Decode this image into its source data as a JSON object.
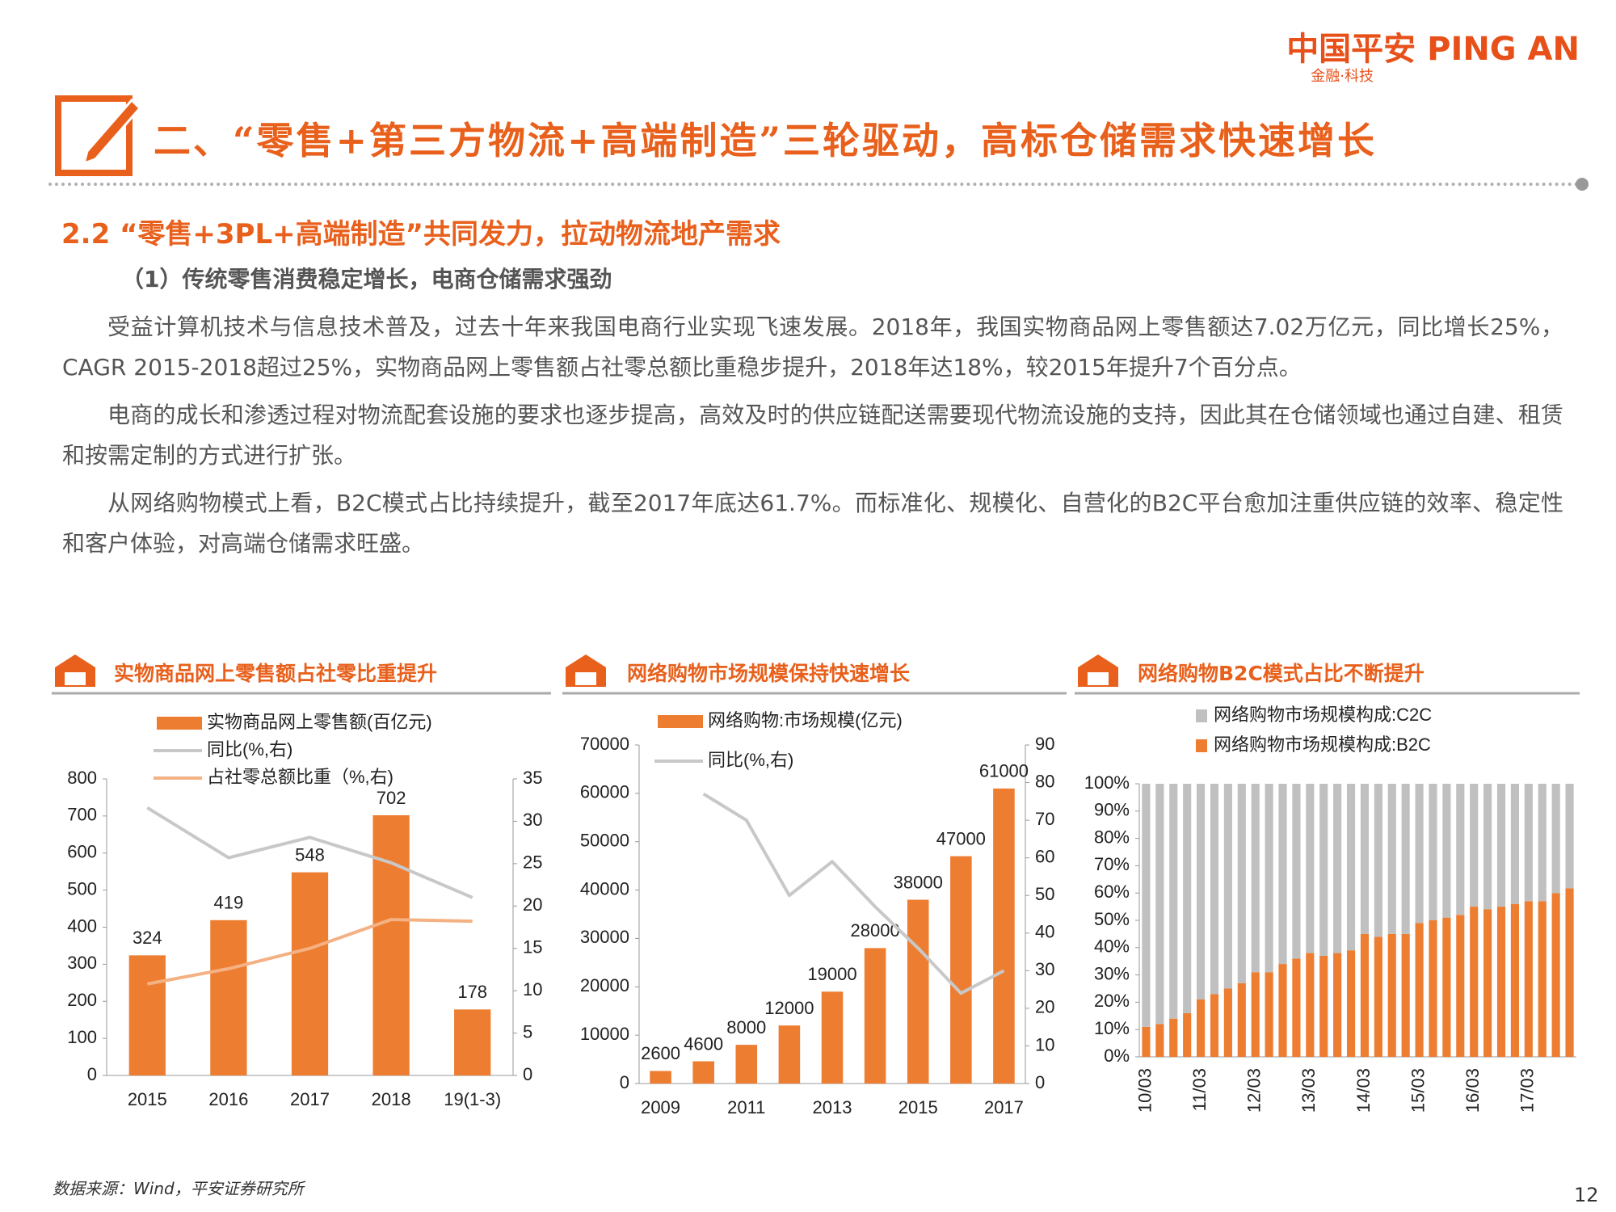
{
  "header": {
    "logo_cn": "中国平安",
    "logo_en": "PING AN",
    "logo_tagline": "金融·科技",
    "title": "二、“零售+第三方物流+高端制造”三轮驱动，高标仓储需求快速增长"
  },
  "section": {
    "heading": "2.2 “零售+3PL+高端制造”共同发力，拉动物流地产需求",
    "subheading": "（1）传统零售消费稳定增长，电商仓储需求强劲",
    "paragraphs": [
      "受益计算机技术与信息技术普及，过去十年来我国电商行业实现飞速发展。2018年，我国实物商品网上零售额达7.02万亿元，同比增长25%，CAGR 2015-2018超过25%，实物商品网上零售额占社零总额比重稳步提升，2018年达18%，较2015年提升7个百分点。",
      "电商的成长和渗透过程对物流配套设施的要求也逐步提高，高效及时的供应链配送需要现代物流设施的支持，因此其在仓储领域也通过自建、租赁和按需定制的方式进行扩张。",
      "从网络购物模式上看，B2C模式占比持续提升，截至2017年底达61.7%。而标准化、规模化、自营化的B2C平台愈加注重供应链的效率、稳定性和客户体验，对高端仓储需求旺盛。"
    ]
  },
  "chart_data": [
    {
      "type": "bar",
      "title": "实物商品网上零售额占社零比重提升",
      "categories": [
        "2015",
        "2016",
        "2017",
        "2018",
        "19(1-3)"
      ],
      "data_labels": true,
      "series": [
        {
          "name": "实物商品网上零售额(百亿元)",
          "type": "bar",
          "color": "#ED7D31",
          "values": [
            324,
            419,
            548,
            702,
            178
          ]
        },
        {
          "name": "同比(%,右)",
          "type": "line",
          "axis": "y2",
          "color": "#c8c8c8",
          "values": [
            31.6,
            25.7,
            28.1,
            25.1,
            21
          ]
        },
        {
          "name": "占社零总额比重（%,右)",
          "type": "line",
          "axis": "y2",
          "color": "#f4b183",
          "values": [
            10.8,
            12.6,
            15,
            18.4,
            18.2
          ]
        }
      ],
      "ylim": [
        0,
        800
      ],
      "yticks": [
        0,
        100,
        200,
        300,
        400,
        500,
        600,
        700,
        800
      ],
      "y2lim": [
        0,
        35
      ],
      "y2ticks": [
        0,
        5,
        10,
        15,
        20,
        25,
        30,
        35
      ]
    },
    {
      "type": "bar",
      "title": "网络购物市场规模保持快速增长",
      "categories": [
        "2009",
        null,
        "2011",
        null,
        "2013",
        null,
        "2015",
        null,
        "2017"
      ],
      "data_labels": true,
      "series": [
        {
          "name": "网络购物:市场规模(亿元)",
          "type": "bar",
          "color": "#ED7D31",
          "values": [
            2600,
            4600,
            8000,
            12000,
            19000,
            28000,
            38000,
            47000,
            61000
          ]
        },
        {
          "name": "同比(%,右)",
          "type": "line",
          "axis": "y2",
          "color": "#c8c8c8",
          "values": [
            null,
            77,
            70,
            50,
            59,
            47,
            36,
            24,
            30
          ]
        }
      ],
      "ylim": [
        0,
        70000
      ],
      "yticks": [
        0,
        10000,
        20000,
        30000,
        40000,
        50000,
        60000,
        70000
      ],
      "y2lim": [
        0,
        90
      ],
      "y2ticks": [
        0,
        10,
        20,
        30,
        40,
        50,
        60,
        70,
        80,
        90
      ]
    },
    {
      "type": "stacked_bar",
      "title": "网络购物B2C模式占比不断提升",
      "categories": [
        "10/03",
        null,
        null,
        null,
        "11/03",
        null,
        null,
        null,
        "12/03",
        null,
        null,
        null,
        "13/03",
        null,
        null,
        null,
        "14/03",
        null,
        null,
        null,
        "15/03",
        null,
        null,
        null,
        "16/03",
        null,
        null,
        null,
        "17/03",
        null,
        null,
        null
      ],
      "series": [
        {
          "name": "网络购物市场规模构成:B2C",
          "color": "#ED7D31",
          "values": [
            11,
            12,
            14,
            16,
            21,
            23,
            25,
            27,
            31,
            31,
            34,
            36,
            38,
            37,
            38,
            39,
            45,
            44,
            45,
            45,
            49,
            50,
            51,
            52,
            55,
            54,
            55,
            56,
            57,
            57,
            60,
            61.7
          ]
        },
        {
          "name": "网络购物市场规模构成:C2C",
          "color": "#c0c0c0",
          "values": [
            89,
            88,
            86,
            84,
            79,
            77,
            75,
            73,
            69,
            69,
            66,
            64,
            62,
            63,
            62,
            61,
            55,
            56,
            55,
            55,
            51,
            50,
            49,
            48,
            45,
            46,
            45,
            44,
            43,
            43,
            40,
            38.3
          ]
        }
      ],
      "ylim": [
        0,
        100
      ],
      "yticks": [
        {
          "value": 0,
          "label": "0%"
        },
        {
          "value": 10,
          "label": "10%"
        },
        {
          "value": 20,
          "label": "20%"
        },
        {
          "value": 30,
          "label": "30%"
        },
        {
          "value": 40,
          "label": "40%"
        },
        {
          "value": 50,
          "label": "50%"
        },
        {
          "value": 60,
          "label": "60%"
        },
        {
          "value": 70,
          "label": "70%"
        },
        {
          "value": 80,
          "label": "80%"
        },
        {
          "value": 90,
          "label": "90%"
        },
        {
          "value": 100,
          "label": "100%"
        }
      ]
    }
  ],
  "footer": {
    "source": "数据来源：Wind，平安证券研究所",
    "page": "12"
  }
}
